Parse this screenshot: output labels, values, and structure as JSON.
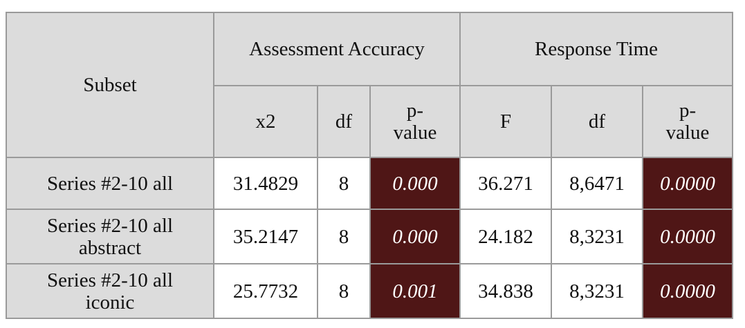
{
  "table": {
    "subset_header": "Subset",
    "groups": [
      {
        "label": "Assessment Accuracy",
        "cols": [
          "x2",
          "df",
          "p-\nvalue"
        ]
      },
      {
        "label": "Response Time",
        "cols": [
          "F",
          "df",
          "p-\nvalue"
        ]
      }
    ],
    "rows": [
      {
        "subset": "Series #2-10 all",
        "aa_x2": "31.4829",
        "aa_df": "8",
        "aa_p": "0.000",
        "rt_f": "36.271",
        "rt_df": "8,6471",
        "rt_p": "0.0000"
      },
      {
        "subset": "Series #2-10 all\nabstract",
        "aa_x2": "35.2147",
        "aa_df": "8",
        "aa_p": "0.000",
        "rt_f": "24.182",
        "rt_df": "8,3231",
        "rt_p": "0.0000"
      },
      {
        "subset": "Series #2-10 all\niconic",
        "aa_x2": "25.7732",
        "aa_df": "8",
        "aa_p": "0.001",
        "rt_f": "34.838",
        "rt_df": "8,3231",
        "rt_p": "0.0000"
      }
    ],
    "colors": {
      "header_bg": "#dcdcdc",
      "pvalue_bg": "#4f1616",
      "border": "#9a9a9a"
    }
  }
}
